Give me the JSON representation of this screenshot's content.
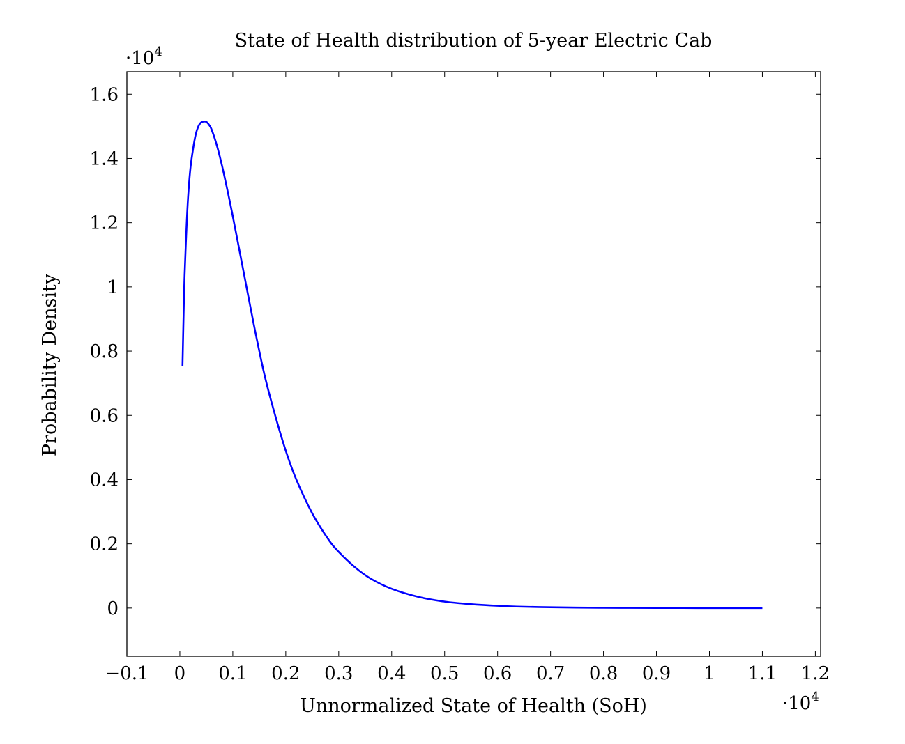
{
  "chart_data": {
    "type": "line",
    "title": "State of Health distribution of 5-year Electric Cab",
    "xlabel": "Unnormalized State of Health (SoH)",
    "ylabel": "Probability Density",
    "x_scale_note": "·10",
    "x_scale_exp": "4",
    "y_scale_note": "·10",
    "y_scale_exp": "4",
    "xlim": [
      -0.1,
      1.21
    ],
    "ylim": [
      -0.15,
      1.67
    ],
    "x_ticks": [
      -0.1,
      0,
      0.1,
      0.2,
      0.3,
      0.4,
      0.5,
      0.6,
      0.7,
      0.8,
      0.9,
      1,
      1.1,
      1.2
    ],
    "x_tick_labels": [
      "−0.1",
      "0",
      "0.1",
      "0.2",
      "0.3",
      "0.4",
      "0.5",
      "0.6",
      "0.7",
      "0.8",
      "0.9",
      "1",
      "1.1",
      "1.2"
    ],
    "y_ticks": [
      0,
      0.2,
      0.4,
      0.6,
      0.8,
      1,
      1.2,
      1.4,
      1.6
    ],
    "y_tick_labels": [
      "0",
      "0.2",
      "0.4",
      "0.6",
      "0.8",
      "1",
      "1.2",
      "1.4",
      "1.6"
    ],
    "grid": false,
    "series": [
      {
        "color": "#0000ff",
        "x": [
          0.005,
          0.008,
          0.01,
          0.013,
          0.016,
          0.02,
          0.025,
          0.03,
          0.035,
          0.04,
          0.045,
          0.05,
          0.055,
          0.06,
          0.07,
          0.08,
          0.09,
          0.1,
          0.12,
          0.14,
          0.16,
          0.18,
          0.2,
          0.22,
          0.25,
          0.28,
          0.3,
          0.33,
          0.36,
          0.4,
          0.45,
          0.5,
          0.55,
          0.6,
          0.65,
          0.7,
          0.75,
          0.8,
          0.85,
          0.9,
          0.95,
          1.0,
          1.05,
          1.1
        ],
        "y": [
          0.753,
          0.98,
          1.08,
          1.2,
          1.29,
          1.37,
          1.43,
          1.475,
          1.5,
          1.512,
          1.515,
          1.514,
          1.505,
          1.49,
          1.44,
          1.375,
          1.3,
          1.22,
          1.05,
          0.88,
          0.725,
          0.6,
          0.49,
          0.4,
          0.295,
          0.215,
          0.175,
          0.128,
          0.092,
          0.06,
          0.035,
          0.02,
          0.012,
          0.007,
          0.004,
          0.0025,
          0.0015,
          0.0009,
          0.0005,
          0.0003,
          0.0002,
          0.0001,
          5e-05,
          0.0
        ]
      }
    ]
  }
}
